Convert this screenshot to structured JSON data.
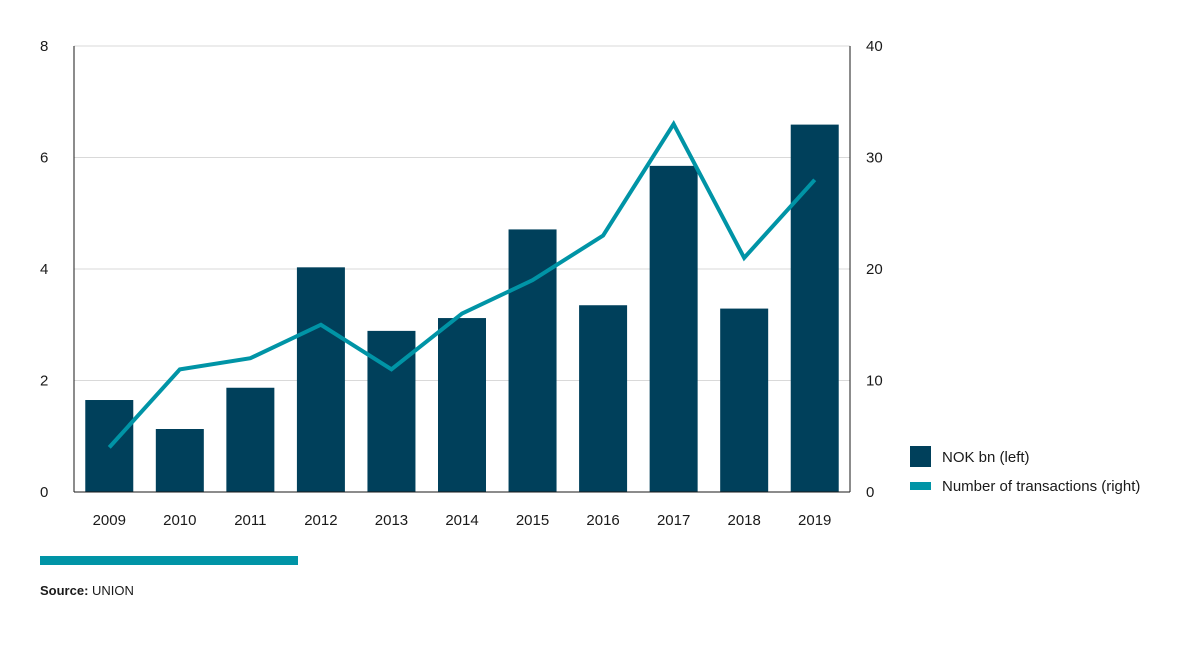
{
  "chart_data": {
    "type": "bar",
    "categories": [
      "2009",
      "2010",
      "2011",
      "2012",
      "2013",
      "2014",
      "2015",
      "2016",
      "2017",
      "2018",
      "2019"
    ],
    "series": [
      {
        "name": "NOK bn (left)",
        "type": "bar",
        "axis": "left",
        "values": [
          1.65,
          1.13,
          1.87,
          4.03,
          2.89,
          3.12,
          4.71,
          3.35,
          5.85,
          3.29,
          6.59
        ]
      },
      {
        "name": "Number of transactions (right)",
        "type": "line",
        "axis": "right",
        "values": [
          4,
          11,
          12,
          15,
          11,
          16,
          19,
          23,
          33,
          21,
          28
        ]
      }
    ],
    "left_axis": {
      "ylim": [
        0,
        8
      ],
      "ticks": [
        "0",
        "2",
        "4",
        "6",
        "8"
      ]
    },
    "right_axis": {
      "ylim": [
        0,
        40
      ],
      "ticks": [
        "0",
        "10",
        "20",
        "30",
        "40"
      ]
    },
    "grid": true,
    "legend_position": "right"
  },
  "colors": {
    "bar": "#00405b",
    "line": "#0094a6",
    "grid": "#d9d9d9",
    "axis": "#1a1a1a",
    "accent": "#0094a6"
  },
  "source": {
    "label": "Source:",
    "text": "UNION"
  }
}
